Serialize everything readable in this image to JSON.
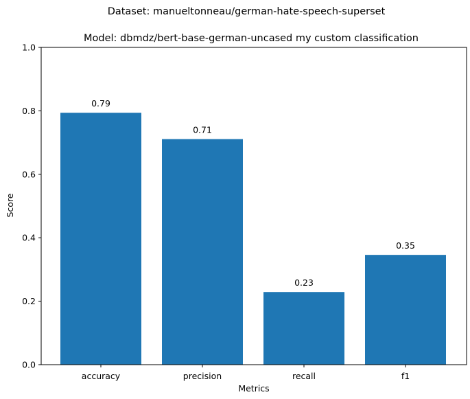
{
  "chart_data": {
    "type": "bar",
    "suptitle": "Dataset: manueltonneau/german-hate-speech-superset",
    "title": "Model: dbmdz/bert-base-german-uncased my custom classification",
    "xlabel": "Metrics",
    "ylabel": "Score",
    "categories": [
      "accuracy",
      "precision",
      "recall",
      "f1"
    ],
    "values": [
      0.794,
      0.711,
      0.229,
      0.346
    ],
    "value_labels": [
      "0.79",
      "0.71",
      "0.23",
      "0.35"
    ],
    "ylim": [
      0,
      1
    ],
    "yticks": [
      0.0,
      0.2,
      0.4,
      0.6,
      0.8,
      1.0
    ],
    "ytick_labels": [
      "0.0",
      "0.2",
      "0.4",
      "0.6",
      "0.8",
      "1.0"
    ],
    "grid": false,
    "legend": "none",
    "bar_color": "#1f77b4"
  }
}
